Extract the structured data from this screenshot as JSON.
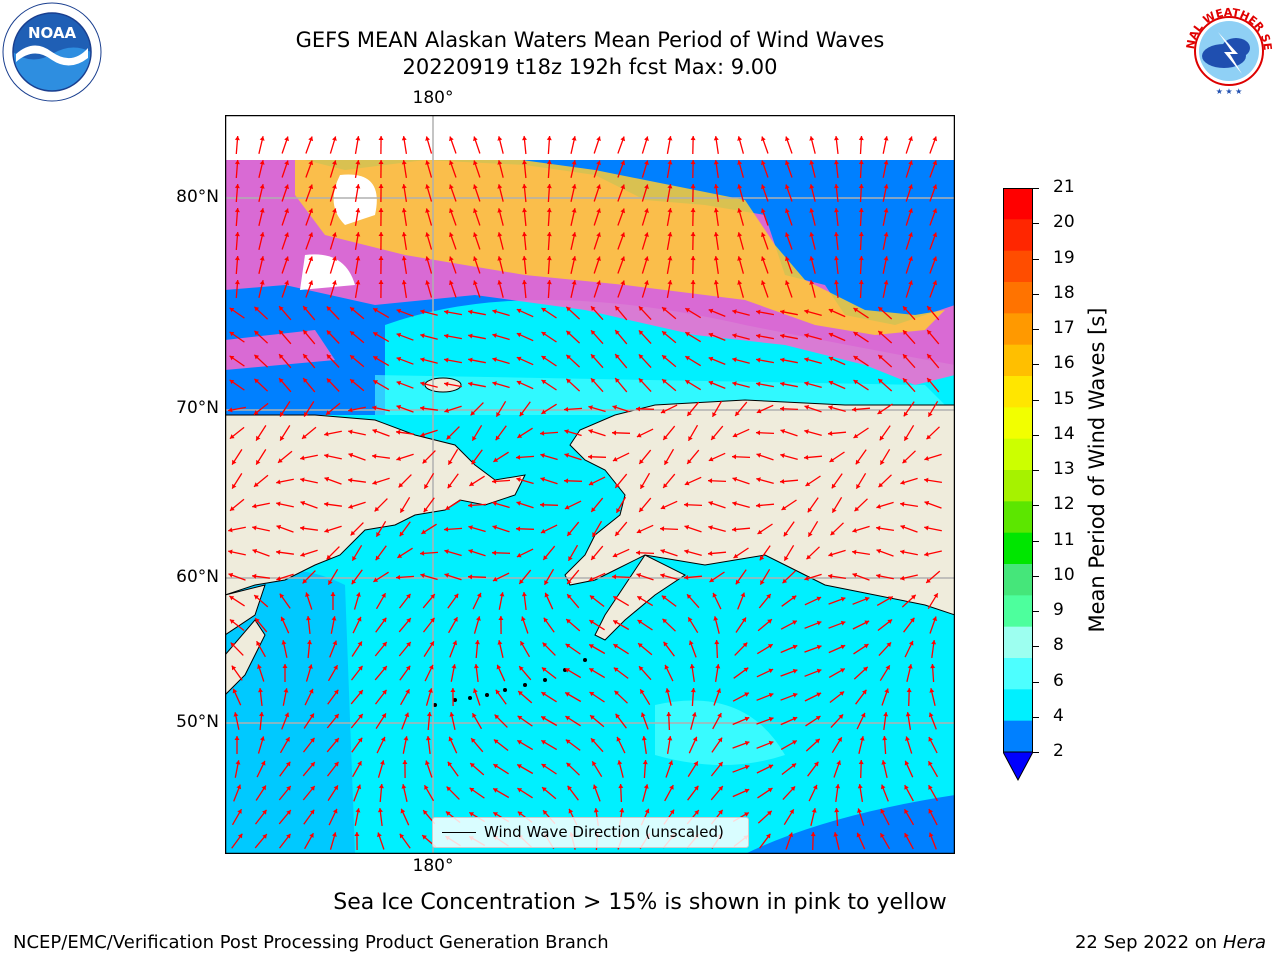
{
  "header": {
    "title_line1": "GEFS MEAN Alaskan Waters Mean Period of Wind Waves",
    "title_line2": "20220919 t18z 192h fcst   Max: 9.00"
  },
  "logos": {
    "left": {
      "name": "noaa-logo",
      "text": "NOAA",
      "ring_text": "NATIONAL OCEANIC AND ATMOSPHERIC ADMINISTRATION · U.S. DEPARTMENT OF COMMERCE"
    },
    "right": {
      "name": "nws-logo",
      "ring_text": "NATIONAL WEATHER SERVICE"
    }
  },
  "map": {
    "lon_label_top": "180°",
    "lon_label_bottom": "180°",
    "lat_labels": [
      "80°N",
      "70°N",
      "60°N",
      "50°N"
    ],
    "legend_text": "Wind Wave Direction (unscaled)",
    "colors": {
      "land": "#efecdc",
      "ocean_deep": "#0080ff",
      "ocean_mid": "#00f0ff",
      "ocean_light": "#50ffff",
      "arrow": "#ff0000"
    }
  },
  "colorbar": {
    "label": "Mean Period of Wind Waves [s]",
    "ticks": [
      "21",
      "20",
      "19",
      "18",
      "17",
      "16",
      "15",
      "14",
      "13",
      "12",
      "11",
      "10",
      "9",
      "8",
      "6",
      "4",
      "2"
    ],
    "colors_top_to_bottom": [
      "#ff0000",
      "#ff2600",
      "#ff4d00",
      "#ff7300",
      "#ff9900",
      "#ffbf00",
      "#ffe600",
      "#f2ff00",
      "#ccff00",
      "#a6f200",
      "#5ce600",
      "#00e600",
      "#45e67a",
      "#4dff9d",
      "#9dfff0",
      "#4dffff",
      "#00f0ff",
      "#0080ff"
    ],
    "extend_color": "#0000ff"
  },
  "caption": "Sea Ice Concentration > 15% is shown in pink to yellow",
  "footer": {
    "left": "NCEP/EMC/Verification Post Processing Product Generation Branch",
    "date": "22 Sep 2022 on",
    "machine": "Hera"
  }
}
